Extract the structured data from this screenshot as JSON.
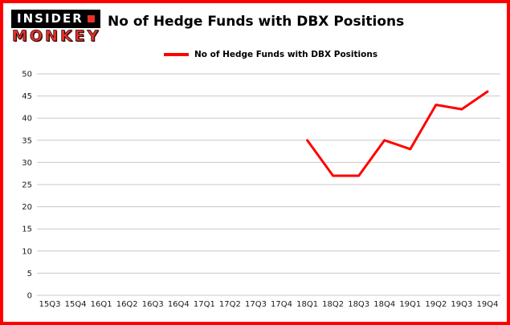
{
  "header": {
    "logo": {
      "line1": "INSIDER",
      "line2": "MONKEY"
    },
    "title": "No of Hedge Funds with DBX Positions"
  },
  "legend": {
    "label": "No of Hedge Funds with DBX Positions",
    "color": "#ff0000"
  },
  "colors": {
    "border": "#ff0000",
    "gridline": "#c8c8c8",
    "text": "#1a1a1a",
    "background": "#ffffff"
  },
  "chart_data": {
    "type": "line",
    "title": "No of Hedge Funds with DBX Positions",
    "categories": [
      "15Q3",
      "15Q4",
      "16Q1",
      "16Q2",
      "16Q3",
      "16Q4",
      "17Q1",
      "17Q2",
      "17Q3",
      "17Q4",
      "18Q1",
      "18Q2",
      "18Q3",
      "18Q4",
      "19Q1",
      "19Q2",
      "19Q3",
      "19Q4"
    ],
    "series": [
      {
        "name": "No of Hedge Funds with DBX Positions",
        "color": "#ff0000",
        "values": [
          null,
          null,
          null,
          null,
          null,
          null,
          null,
          null,
          null,
          null,
          35,
          27,
          27,
          35,
          33,
          43,
          42,
          46
        ]
      }
    ],
    "ylim": [
      0,
      50
    ],
    "ytick_step": 5,
    "grid": true,
    "legend_position": "top-left"
  }
}
